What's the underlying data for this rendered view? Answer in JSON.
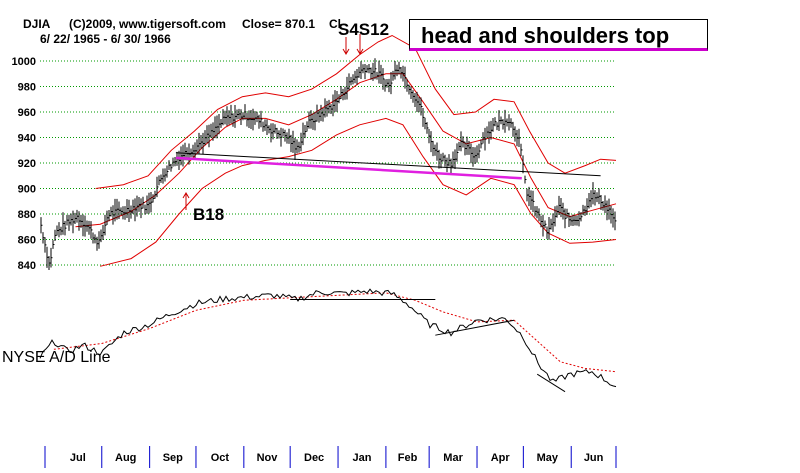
{
  "header": {
    "symbol": "DJIA",
    "copyright": "(C)2009, www.tigersoft.com",
    "close_text": "Close=  870.1",
    "change_text": "Cl",
    "date_range": "6/ 22/ 1965 - 6/ 30/ 1966"
  },
  "annotations": {
    "title": "head and shoulders top",
    "sell_signal": "S4S12",
    "buy_signal": "B18",
    "ad_label": "NYSE A/D Line"
  },
  "colors": {
    "price_bars": "#000000",
    "bands": "#e00000",
    "neckline": "#e020e0",
    "grid": "#009900",
    "month_ticks": "#0000cc",
    "ad_ma": "#e00000"
  },
  "chart_data": {
    "type": "line",
    "title": "head and shoulders top",
    "xlabel": "",
    "ylabel": "",
    "ylim": [
      825,
      1025
    ],
    "yticks": [
      840,
      860,
      880,
      900,
      920,
      940,
      960,
      980,
      1000
    ],
    "grid": true,
    "months": [
      "Jul",
      "Aug",
      "Sep",
      "Oct",
      "Nov",
      "Dec",
      "Jan",
      "Feb",
      "Mar",
      "Apr",
      "May",
      "Jun"
    ],
    "close_points": [
      [
        "1965-06-22",
        875
      ],
      [
        "1965-06-28",
        840
      ],
      [
        "1965-07-02",
        865
      ],
      [
        "1965-07-09",
        872
      ],
      [
        "1965-07-16",
        878
      ],
      [
        "1965-07-23",
        870
      ],
      [
        "1965-07-28",
        860
      ],
      [
        "1965-07-31",
        858
      ],
      [
        "1965-08-05",
        880
      ],
      [
        "1965-08-15",
        882
      ],
      [
        "1965-08-25",
        887
      ],
      [
        "1965-08-31",
        886
      ],
      [
        "1965-09-10",
        912
      ],
      [
        "1965-09-20",
        925
      ],
      [
        "1965-09-30",
        932
      ],
      [
        "1965-10-10",
        942
      ],
      [
        "1965-10-20",
        955
      ],
      [
        "1965-10-31",
        958
      ],
      [
        "1965-11-10",
        954
      ],
      [
        "1965-11-20",
        945
      ],
      [
        "1965-11-30",
        940
      ],
      [
        "1965-12-05",
        930
      ],
      [
        "1965-12-12",
        950
      ],
      [
        "1965-12-20",
        958
      ],
      [
        "1965-12-31",
        968
      ],
      [
        "1966-01-10",
        985
      ],
      [
        "1966-01-18",
        995
      ],
      [
        "1966-01-27",
        990
      ],
      [
        "1966-02-03",
        980
      ],
      [
        "1966-02-09",
        998
      ],
      [
        "1966-02-16",
        980
      ],
      [
        "1966-02-23",
        965
      ],
      [
        "1966-03-01",
        940
      ],
      [
        "1966-03-07",
        925
      ],
      [
        "1966-03-15",
        920
      ],
      [
        "1966-03-22",
        935
      ],
      [
        "1966-03-31",
        925
      ],
      [
        "1966-04-05",
        940
      ],
      [
        "1966-04-12",
        950
      ],
      [
        "1966-04-21",
        955
      ],
      [
        "1966-04-28",
        940
      ],
      [
        "1966-05-03",
        898
      ],
      [
        "1966-05-10",
        880
      ],
      [
        "1966-05-17",
        865
      ],
      [
        "1966-05-24",
        885
      ],
      [
        "1966-05-31",
        875
      ],
      [
        "1966-06-07",
        878
      ],
      [
        "1966-06-14",
        895
      ],
      [
        "1966-06-21",
        890
      ],
      [
        "1966-06-27",
        880
      ],
      [
        "1966-06-30",
        870
      ]
    ],
    "series": [
      {
        "key": "upper_band",
        "points": [
          [
            "1965-07-28",
            900
          ],
          [
            "1965-08-15",
            903
          ],
          [
            "1965-08-31",
            910
          ],
          [
            "1965-09-15",
            930
          ],
          [
            "1965-09-30",
            945
          ],
          [
            "1965-10-15",
            962
          ],
          [
            "1965-10-31",
            972
          ],
          [
            "1965-11-15",
            975
          ],
          [
            "1965-11-30",
            972
          ],
          [
            "1965-12-15",
            978
          ],
          [
            "1965-12-31",
            990
          ],
          [
            "1966-01-15",
            1005
          ],
          [
            "1966-01-27",
            1015
          ],
          [
            "1966-02-05",
            1020
          ],
          [
            "1966-02-20",
            1010
          ],
          [
            "1966-03-05",
            978
          ],
          [
            "1966-03-17",
            958
          ],
          [
            "1966-03-31",
            960
          ],
          [
            "1966-04-12",
            970
          ],
          [
            "1966-04-25",
            968
          ],
          [
            "1966-05-05",
            945
          ],
          [
            "1966-05-17",
            920
          ],
          [
            "1966-05-28",
            912
          ],
          [
            "1966-06-10",
            918
          ],
          [
            "1966-06-20",
            923
          ],
          [
            "1966-06-30",
            922
          ]
        ]
      },
      {
        "key": "middle_band",
        "points": [
          [
            "1965-07-15",
            870
          ],
          [
            "1965-07-31",
            872
          ],
          [
            "1965-08-20",
            882
          ],
          [
            "1965-09-05",
            895
          ],
          [
            "1965-09-20",
            912
          ],
          [
            "1965-10-05",
            932
          ],
          [
            "1965-10-20",
            948
          ],
          [
            "1965-10-31",
            955
          ],
          [
            "1965-11-15",
            955
          ],
          [
            "1965-11-30",
            950
          ],
          [
            "1965-12-15",
            958
          ],
          [
            "1965-12-31",
            970
          ],
          [
            "1966-01-15",
            983
          ],
          [
            "1966-02-01",
            990
          ],
          [
            "1966-02-12",
            990
          ],
          [
            "1966-02-25",
            968
          ],
          [
            "1966-03-10",
            945
          ],
          [
            "1966-03-25",
            935
          ],
          [
            "1966-04-10",
            940
          ],
          [
            "1966-04-25",
            935
          ],
          [
            "1966-05-06",
            908
          ],
          [
            "1966-05-17",
            885
          ],
          [
            "1966-05-31",
            878
          ],
          [
            "1966-06-15",
            883
          ],
          [
            "1966-06-30",
            888
          ]
        ]
      },
      {
        "key": "lower_band",
        "points": [
          [
            "1965-07-31",
            839
          ],
          [
            "1965-08-20",
            845
          ],
          [
            "1965-09-05",
            858
          ],
          [
            "1965-09-20",
            880
          ],
          [
            "1965-10-05",
            900
          ],
          [
            "1965-10-20",
            912
          ],
          [
            "1965-10-31",
            918
          ],
          [
            "1965-11-15",
            922
          ],
          [
            "1965-11-30",
            925
          ],
          [
            "1965-12-15",
            930
          ],
          [
            "1965-12-31",
            942
          ],
          [
            "1966-01-15",
            950
          ],
          [
            "1966-02-01",
            955
          ],
          [
            "1966-02-12",
            950
          ],
          [
            "1966-02-25",
            925
          ],
          [
            "1966-03-10",
            903
          ],
          [
            "1966-03-25",
            895
          ],
          [
            "1966-04-10",
            908
          ],
          [
            "1966-04-25",
            903
          ],
          [
            "1966-05-06",
            880
          ],
          [
            "1966-05-17",
            865
          ],
          [
            "1966-05-31",
            857
          ],
          [
            "1966-06-15",
            858
          ],
          [
            "1966-06-30",
            860
          ]
        ]
      },
      {
        "key": "neckline_magenta",
        "points": [
          [
            "1965-09-18",
            924
          ],
          [
            "1966-04-30",
            908
          ]
        ]
      },
      {
        "key": "trendline_black",
        "points": [
          [
            "1965-09-18",
            928
          ],
          [
            "1966-06-20",
            910
          ]
        ]
      },
      {
        "key": "ad_line",
        "points": [
          [
            "1965-06-22",
            0.15
          ],
          [
            "1965-07-01",
            0.35
          ],
          [
            "1965-07-10",
            0.22
          ],
          [
            "1965-07-20",
            0.3
          ],
          [
            "1965-08-01",
            0.2
          ],
          [
            "1965-08-15",
            0.45
          ],
          [
            "1965-09-01",
            0.55
          ],
          [
            "1965-09-15",
            0.68
          ],
          [
            "1965-10-01",
            0.8
          ],
          [
            "1965-10-20",
            0.86
          ],
          [
            "1965-11-05",
            0.88
          ],
          [
            "1965-11-20",
            0.9
          ],
          [
            "1965-12-05",
            0.85
          ],
          [
            "1965-12-20",
            0.94
          ],
          [
            "1966-01-05",
            0.92
          ],
          [
            "1966-01-20",
            0.95
          ],
          [
            "1966-02-05",
            0.92
          ],
          [
            "1966-02-15",
            0.8
          ],
          [
            "1966-03-01",
            0.55
          ],
          [
            "1966-03-15",
            0.45
          ],
          [
            "1966-04-01",
            0.6
          ],
          [
            "1966-04-20",
            0.62
          ],
          [
            "1966-05-01",
            0.4
          ],
          [
            "1966-05-10",
            0.1
          ],
          [
            "1966-05-20",
            -0.15
          ],
          [
            "1966-05-31",
            -0.05
          ],
          [
            "1966-06-15",
            -0.02
          ],
          [
            "1966-06-30",
            -0.2
          ]
        ]
      },
      {
        "key": "ad_ma",
        "points": [
          [
            "1965-07-01",
            0.25
          ],
          [
            "1965-08-01",
            0.32
          ],
          [
            "1965-09-01",
            0.5
          ],
          [
            "1965-10-01",
            0.72
          ],
          [
            "1965-11-01",
            0.84
          ],
          [
            "1965-12-01",
            0.87
          ],
          [
            "1966-01-01",
            0.9
          ],
          [
            "1966-02-01",
            0.93
          ],
          [
            "1966-02-20",
            0.84
          ],
          [
            "1966-03-10",
            0.7
          ],
          [
            "1966-04-01",
            0.58
          ],
          [
            "1966-04-25",
            0.6
          ],
          [
            "1966-05-10",
            0.35
          ],
          [
            "1966-05-25",
            0.1
          ],
          [
            "1966-06-10",
            0.02
          ],
          [
            "1966-06-30",
            -0.02
          ]
        ]
      }
    ]
  }
}
